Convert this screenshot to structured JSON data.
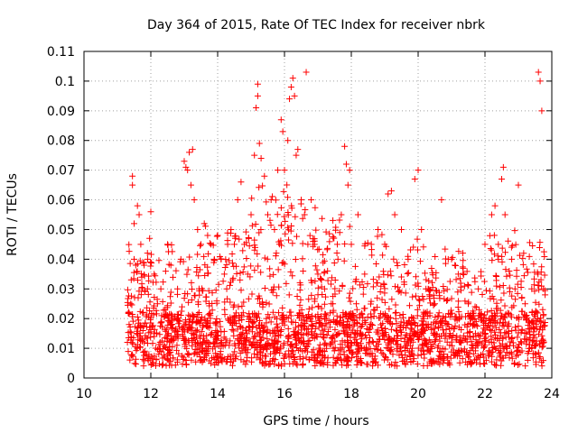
{
  "chart_data": {
    "type": "scatter",
    "title": "Day 364 of 2015, Rate Of TEC Index for receiver nbrk",
    "xlabel": "GPS time / hours",
    "ylabel": "ROTI / TECUs",
    "xlim": [
      10,
      24
    ],
    "ylim": [
      0,
      0.11
    ],
    "x_ticks": [
      "10",
      "12",
      "14",
      "16",
      "18",
      "20",
      "22",
      "24"
    ],
    "y_ticks": [
      "0",
      "0.01",
      "0.02",
      "0.03",
      "0.04",
      "0.05",
      "0.06",
      "0.07",
      "0.08",
      "0.09",
      "0.1",
      "0.11"
    ],
    "grid": true,
    "legend": "none",
    "marker": "+",
    "colors": {
      "series": "#ff0000",
      "grid": "#a0a0a0",
      "axes": "#000000"
    },
    "series": [
      {
        "points": [
          [
            11.3,
            0.012
          ],
          [
            11.35,
            0.018
          ],
          [
            11.4,
            0.025
          ],
          [
            11.45,
            0.068
          ],
          [
            11.45,
            0.065
          ],
          [
            11.5,
            0.052
          ],
          [
            11.5,
            0.04
          ],
          [
            11.55,
            0.038
          ],
          [
            11.6,
            0.058
          ],
          [
            11.65,
            0.055
          ],
          [
            11.7,
            0.045
          ],
          [
            11.8,
            0.038
          ],
          [
            11.9,
            0.03
          ],
          [
            12.0,
            0.056
          ],
          [
            12.1,
            0.035
          ],
          [
            12.2,
            0.025
          ],
          [
            12.3,
            0.03
          ],
          [
            12.5,
            0.045
          ],
          [
            12.6,
            0.038
          ],
          [
            12.7,
            0.02
          ],
          [
            12.8,
            0.03
          ],
          [
            12.9,
            0.04
          ],
          [
            13.0,
            0.073
          ],
          [
            13.05,
            0.071
          ],
          [
            13.1,
            0.07
          ],
          [
            13.15,
            0.076
          ],
          [
            13.2,
            0.065
          ],
          [
            13.25,
            0.077
          ],
          [
            13.3,
            0.06
          ],
          [
            13.4,
            0.05
          ],
          [
            13.5,
            0.045
          ],
          [
            13.6,
            0.052
          ],
          [
            13.7,
            0.048
          ],
          [
            13.8,
            0.045
          ],
          [
            13.9,
            0.04
          ],
          [
            14.0,
            0.048
          ],
          [
            14.1,
            0.04
          ],
          [
            14.2,
            0.035
          ],
          [
            14.3,
            0.045
          ],
          [
            14.4,
            0.05
          ],
          [
            14.5,
            0.045
          ],
          [
            14.6,
            0.06
          ],
          [
            14.7,
            0.066
          ],
          [
            14.8,
            0.045
          ],
          [
            14.9,
            0.035
          ],
          [
            15.0,
            0.055
          ],
          [
            15.1,
            0.075
          ],
          [
            15.15,
            0.091
          ],
          [
            15.2,
            0.095
          ],
          [
            15.2,
            0.099
          ],
          [
            15.25,
            0.079
          ],
          [
            15.3,
            0.074
          ],
          [
            15.4,
            0.068
          ],
          [
            15.5,
            0.055
          ],
          [
            15.6,
            0.06
          ],
          [
            15.7,
            0.05
          ],
          [
            15.8,
            0.07
          ],
          [
            15.9,
            0.087
          ],
          [
            15.95,
            0.083
          ],
          [
            16.0,
            0.07
          ],
          [
            16.1,
            0.08
          ],
          [
            16.15,
            0.094
          ],
          [
            16.2,
            0.098
          ],
          [
            16.25,
            0.101
          ],
          [
            16.3,
            0.095
          ],
          [
            16.35,
            0.075
          ],
          [
            16.4,
            0.077
          ],
          [
            16.5,
            0.06
          ],
          [
            16.6,
            0.055
          ],
          [
            16.65,
            0.103
          ],
          [
            16.7,
            0.045
          ],
          [
            16.8,
            0.06
          ],
          [
            16.9,
            0.045
          ],
          [
            17.0,
            0.035
          ],
          [
            17.2,
            0.03
          ],
          [
            17.4,
            0.025
          ],
          [
            17.6,
            0.04
          ],
          [
            17.7,
            0.055
          ],
          [
            17.8,
            0.078
          ],
          [
            17.85,
            0.072
          ],
          [
            17.9,
            0.065
          ],
          [
            17.95,
            0.07
          ],
          [
            18.0,
            0.045
          ],
          [
            18.2,
            0.055
          ],
          [
            18.4,
            0.035
          ],
          [
            18.6,
            0.045
          ],
          [
            18.8,
            0.05
          ],
          [
            19.0,
            0.045
          ],
          [
            19.1,
            0.062
          ],
          [
            19.2,
            0.063
          ],
          [
            19.3,
            0.055
          ],
          [
            19.5,
            0.05
          ],
          [
            19.7,
            0.04
          ],
          [
            19.9,
            0.067
          ],
          [
            20.0,
            0.07
          ],
          [
            20.1,
            0.05
          ],
          [
            20.3,
            0.03
          ],
          [
            20.5,
            0.025
          ],
          [
            20.7,
            0.06
          ],
          [
            20.9,
            0.04
          ],
          [
            21.0,
            0.04
          ],
          [
            21.1,
            0.038
          ],
          [
            21.2,
            0.035
          ],
          [
            21.5,
            0.025
          ],
          [
            21.8,
            0.03
          ],
          [
            22.0,
            0.045
          ],
          [
            22.2,
            0.055
          ],
          [
            22.3,
            0.058
          ],
          [
            22.4,
            0.045
          ],
          [
            22.5,
            0.067
          ],
          [
            22.55,
            0.071
          ],
          [
            22.6,
            0.055
          ],
          [
            22.8,
            0.04
          ],
          [
            22.9,
            0.03
          ],
          [
            23.0,
            0.065
          ],
          [
            23.2,
            0.025
          ],
          [
            23.4,
            0.03
          ],
          [
            23.6,
            0.103
          ],
          [
            23.65,
            0.1
          ],
          [
            23.7,
            0.09
          ],
          [
            23.75,
            0.03
          ],
          [
            23.8,
            0.028
          ]
        ]
      }
    ]
  }
}
